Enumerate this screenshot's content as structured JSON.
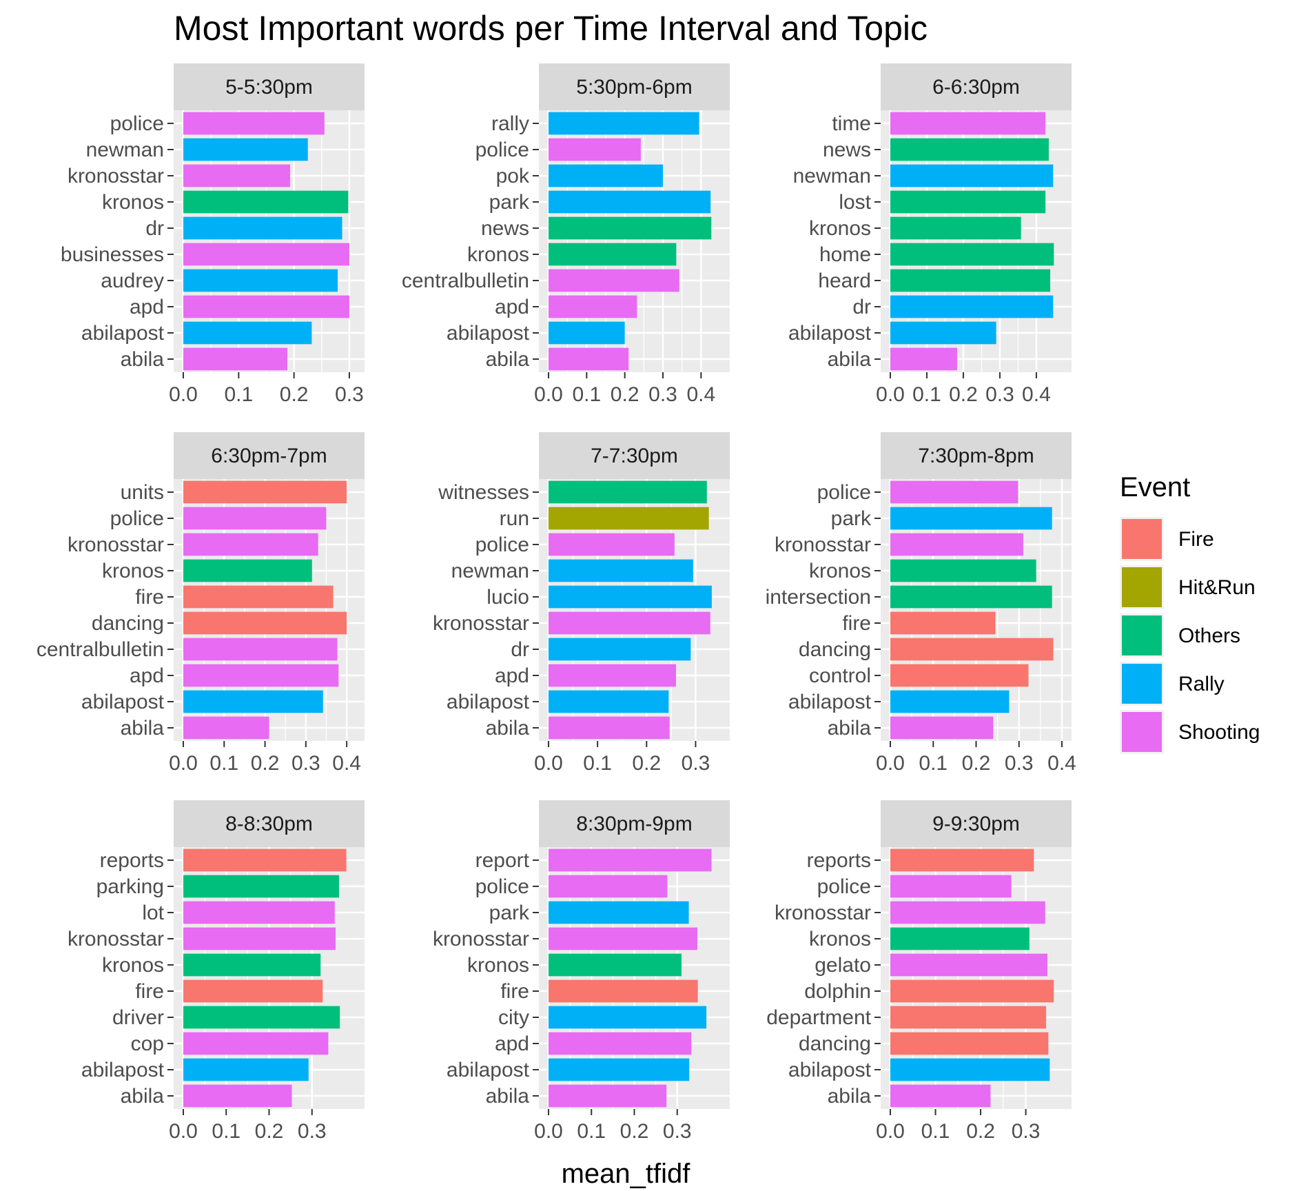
{
  "chart_data": {
    "type": "bar",
    "orientation": "horizontal",
    "title": "Most Important words per Time Interval and Topic",
    "xlabel": "mean_tfidf",
    "ylabel": "",
    "legend": {
      "title": "Event",
      "position": "right",
      "entries": [
        {
          "name": "Fire",
          "color": "#F8766D"
        },
        {
          "name": "Hit&Run",
          "color": "#A3A500"
        },
        {
          "name": "Others",
          "color": "#00BF7D"
        },
        {
          "name": "Rally",
          "color": "#00B0F6"
        },
        {
          "name": "Shooting",
          "color": "#E76BF3"
        }
      ]
    },
    "panels": [
      {
        "label": "5-5:30pm",
        "xlim": [
          0,
          0.31
        ],
        "ticks": [
          "0.0",
          "0.1",
          "0.2",
          "0.3"
        ],
        "bars": [
          {
            "word": "police",
            "value": 0.255,
            "event": "Shooting"
          },
          {
            "word": "newman",
            "value": 0.225,
            "event": "Rally"
          },
          {
            "word": "kronosstar",
            "value": 0.193,
            "event": "Shooting"
          },
          {
            "word": "kronos",
            "value": 0.298,
            "event": "Others"
          },
          {
            "word": "dr",
            "value": 0.287,
            "event": "Rally"
          },
          {
            "word": "businesses",
            "value": 0.3,
            "event": "Shooting"
          },
          {
            "word": "audrey",
            "value": 0.279,
            "event": "Rally"
          },
          {
            "word": "apd",
            "value": 0.3,
            "event": "Shooting"
          },
          {
            "word": "abilapost",
            "value": 0.232,
            "event": "Rally"
          },
          {
            "word": "abila",
            "value": 0.188,
            "event": "Shooting"
          }
        ]
      },
      {
        "label": "5:30pm-6pm",
        "xlim": [
          0,
          0.45
        ],
        "ticks": [
          "0.0",
          "0.1",
          "0.2",
          "0.3",
          "0.4"
        ],
        "bars": [
          {
            "word": "rally",
            "value": 0.395,
            "event": "Rally"
          },
          {
            "word": "police",
            "value": 0.242,
            "event": "Shooting"
          },
          {
            "word": "pok",
            "value": 0.3,
            "event": "Rally"
          },
          {
            "word": "park",
            "value": 0.425,
            "event": "Rally"
          },
          {
            "word": "news",
            "value": 0.427,
            "event": "Others"
          },
          {
            "word": "kronos",
            "value": 0.335,
            "event": "Others"
          },
          {
            "word": "centralbulletin",
            "value": 0.343,
            "event": "Shooting"
          },
          {
            "word": "apd",
            "value": 0.232,
            "event": "Shooting"
          },
          {
            "word": "abilapost",
            "value": 0.2,
            "event": "Rally"
          },
          {
            "word": "abila",
            "value": 0.21,
            "event": "Shooting"
          }
        ]
      },
      {
        "label": "6-6:30pm",
        "xlim": [
          0,
          0.47
        ],
        "ticks": [
          "0.0",
          "0.1",
          "0.2",
          "0.3",
          "0.4"
        ],
        "bars": [
          {
            "word": "time",
            "value": 0.425,
            "event": "Shooting"
          },
          {
            "word": "news",
            "value": 0.434,
            "event": "Others"
          },
          {
            "word": "newman",
            "value": 0.446,
            "event": "Rally"
          },
          {
            "word": "lost",
            "value": 0.425,
            "event": "Others"
          },
          {
            "word": "kronos",
            "value": 0.358,
            "event": "Others"
          },
          {
            "word": "home",
            "value": 0.448,
            "event": "Others"
          },
          {
            "word": "heard",
            "value": 0.438,
            "event": "Others"
          },
          {
            "word": "dr",
            "value": 0.446,
            "event": "Rally"
          },
          {
            "word": "abilapost",
            "value": 0.29,
            "event": "Rally"
          },
          {
            "word": "abila",
            "value": 0.183,
            "event": "Shooting"
          }
        ]
      },
      {
        "label": "6:30pm-7pm",
        "xlim": [
          0,
          0.42
        ],
        "ticks": [
          "0.0",
          "0.1",
          "0.2",
          "0.3",
          "0.4"
        ],
        "bars": [
          {
            "word": "units",
            "value": 0.4,
            "event": "Fire"
          },
          {
            "word": "police",
            "value": 0.35,
            "event": "Shooting"
          },
          {
            "word": "kronosstar",
            "value": 0.33,
            "event": "Shooting"
          },
          {
            "word": "kronos",
            "value": 0.315,
            "event": "Others"
          },
          {
            "word": "fire",
            "value": 0.367,
            "event": "Fire"
          },
          {
            "word": "dancing",
            "value": 0.4,
            "event": "Fire"
          },
          {
            "word": "centralbulletin",
            "value": 0.377,
            "event": "Shooting"
          },
          {
            "word": "apd",
            "value": 0.38,
            "event": "Shooting"
          },
          {
            "word": "abilapost",
            "value": 0.342,
            "event": "Rally"
          },
          {
            "word": "abila",
            "value": 0.21,
            "event": "Shooting"
          }
        ]
      },
      {
        "label": "7-7:30pm",
        "xlim": [
          0,
          0.35
        ],
        "ticks": [
          "0.0",
          "0.1",
          "0.2",
          "0.3"
        ],
        "bars": [
          {
            "word": "witnesses",
            "value": 0.323,
            "event": "Others"
          },
          {
            "word": "run",
            "value": 0.327,
            "event": "Hit&Run"
          },
          {
            "word": "police",
            "value": 0.257,
            "event": "Shooting"
          },
          {
            "word": "newman",
            "value": 0.295,
            "event": "Rally"
          },
          {
            "word": "lucio",
            "value": 0.333,
            "event": "Rally"
          },
          {
            "word": "kronosstar",
            "value": 0.33,
            "event": "Shooting"
          },
          {
            "word": "dr",
            "value": 0.29,
            "event": "Rally"
          },
          {
            "word": "apd",
            "value": 0.26,
            "event": "Shooting"
          },
          {
            "word": "abilapost",
            "value": 0.245,
            "event": "Rally"
          },
          {
            "word": "abila",
            "value": 0.247,
            "event": "Shooting"
          }
        ]
      },
      {
        "label": "7:30pm-8pm",
        "xlim": [
          0,
          0.4
        ],
        "ticks": [
          "0.0",
          "0.1",
          "0.2",
          "0.3",
          "0.4"
        ],
        "bars": [
          {
            "word": "police",
            "value": 0.298,
            "event": "Shooting"
          },
          {
            "word": "park",
            "value": 0.377,
            "event": "Rally"
          },
          {
            "word": "kronosstar",
            "value": 0.31,
            "event": "Shooting"
          },
          {
            "word": "kronos",
            "value": 0.34,
            "event": "Others"
          },
          {
            "word": "intersection",
            "value": 0.377,
            "event": "Others"
          },
          {
            "word": "fire",
            "value": 0.245,
            "event": "Fire"
          },
          {
            "word": "dancing",
            "value": 0.38,
            "event": "Fire"
          },
          {
            "word": "control",
            "value": 0.322,
            "event": "Fire"
          },
          {
            "word": "abilapost",
            "value": 0.277,
            "event": "Rally"
          },
          {
            "word": "abila",
            "value": 0.24,
            "event": "Shooting"
          }
        ]
      },
      {
        "label": "8-8:30pm",
        "xlim": [
          0,
          0.4
        ],
        "ticks": [
          "0.0",
          "0.1",
          "0.2",
          "0.3"
        ],
        "bars": [
          {
            "word": "reports",
            "value": 0.38,
            "event": "Fire"
          },
          {
            "word": "parking",
            "value": 0.363,
            "event": "Others"
          },
          {
            "word": "lot",
            "value": 0.353,
            "event": "Shooting"
          },
          {
            "word": "kronosstar",
            "value": 0.355,
            "event": "Shooting"
          },
          {
            "word": "kronos",
            "value": 0.32,
            "event": "Others"
          },
          {
            "word": "fire",
            "value": 0.325,
            "event": "Fire"
          },
          {
            "word": "driver",
            "value": 0.365,
            "event": "Others"
          },
          {
            "word": "cop",
            "value": 0.338,
            "event": "Shooting"
          },
          {
            "word": "abilapost",
            "value": 0.292,
            "event": "Rally"
          },
          {
            "word": "abila",
            "value": 0.253,
            "event": "Shooting"
          }
        ]
      },
      {
        "label": "8:30pm-9pm",
        "xlim": [
          0,
          0.4
        ],
        "ticks": [
          "0.0",
          "0.1",
          "0.2",
          "0.3"
        ],
        "bars": [
          {
            "word": "report",
            "value": 0.38,
            "event": "Shooting"
          },
          {
            "word": "police",
            "value": 0.277,
            "event": "Shooting"
          },
          {
            "word": "park",
            "value": 0.327,
            "event": "Rally"
          },
          {
            "word": "kronosstar",
            "value": 0.347,
            "event": "Shooting"
          },
          {
            "word": "kronos",
            "value": 0.31,
            "event": "Others"
          },
          {
            "word": "fire",
            "value": 0.348,
            "event": "Fire"
          },
          {
            "word": "city",
            "value": 0.368,
            "event": "Rally"
          },
          {
            "word": "apd",
            "value": 0.333,
            "event": "Shooting"
          },
          {
            "word": "abilapost",
            "value": 0.328,
            "event": "Rally"
          },
          {
            "word": "abila",
            "value": 0.275,
            "event": "Shooting"
          }
        ]
      },
      {
        "label": "9-9:30pm",
        "xlim": [
          0,
          0.38
        ],
        "ticks": [
          "0.0",
          "0.1",
          "0.2",
          "0.3"
        ],
        "bars": [
          {
            "word": "reports",
            "value": 0.318,
            "event": "Fire"
          },
          {
            "word": "police",
            "value": 0.268,
            "event": "Shooting"
          },
          {
            "word": "kronosstar",
            "value": 0.343,
            "event": "Shooting"
          },
          {
            "word": "kronos",
            "value": 0.308,
            "event": "Others"
          },
          {
            "word": "gelato",
            "value": 0.348,
            "event": "Shooting"
          },
          {
            "word": "dolphin",
            "value": 0.362,
            "event": "Fire"
          },
          {
            "word": "department",
            "value": 0.345,
            "event": "Fire"
          },
          {
            "word": "dancing",
            "value": 0.35,
            "event": "Fire"
          },
          {
            "word": "abilapost",
            "value": 0.353,
            "event": "Rally"
          },
          {
            "word": "abila",
            "value": 0.222,
            "event": "Shooting"
          }
        ]
      }
    ]
  }
}
